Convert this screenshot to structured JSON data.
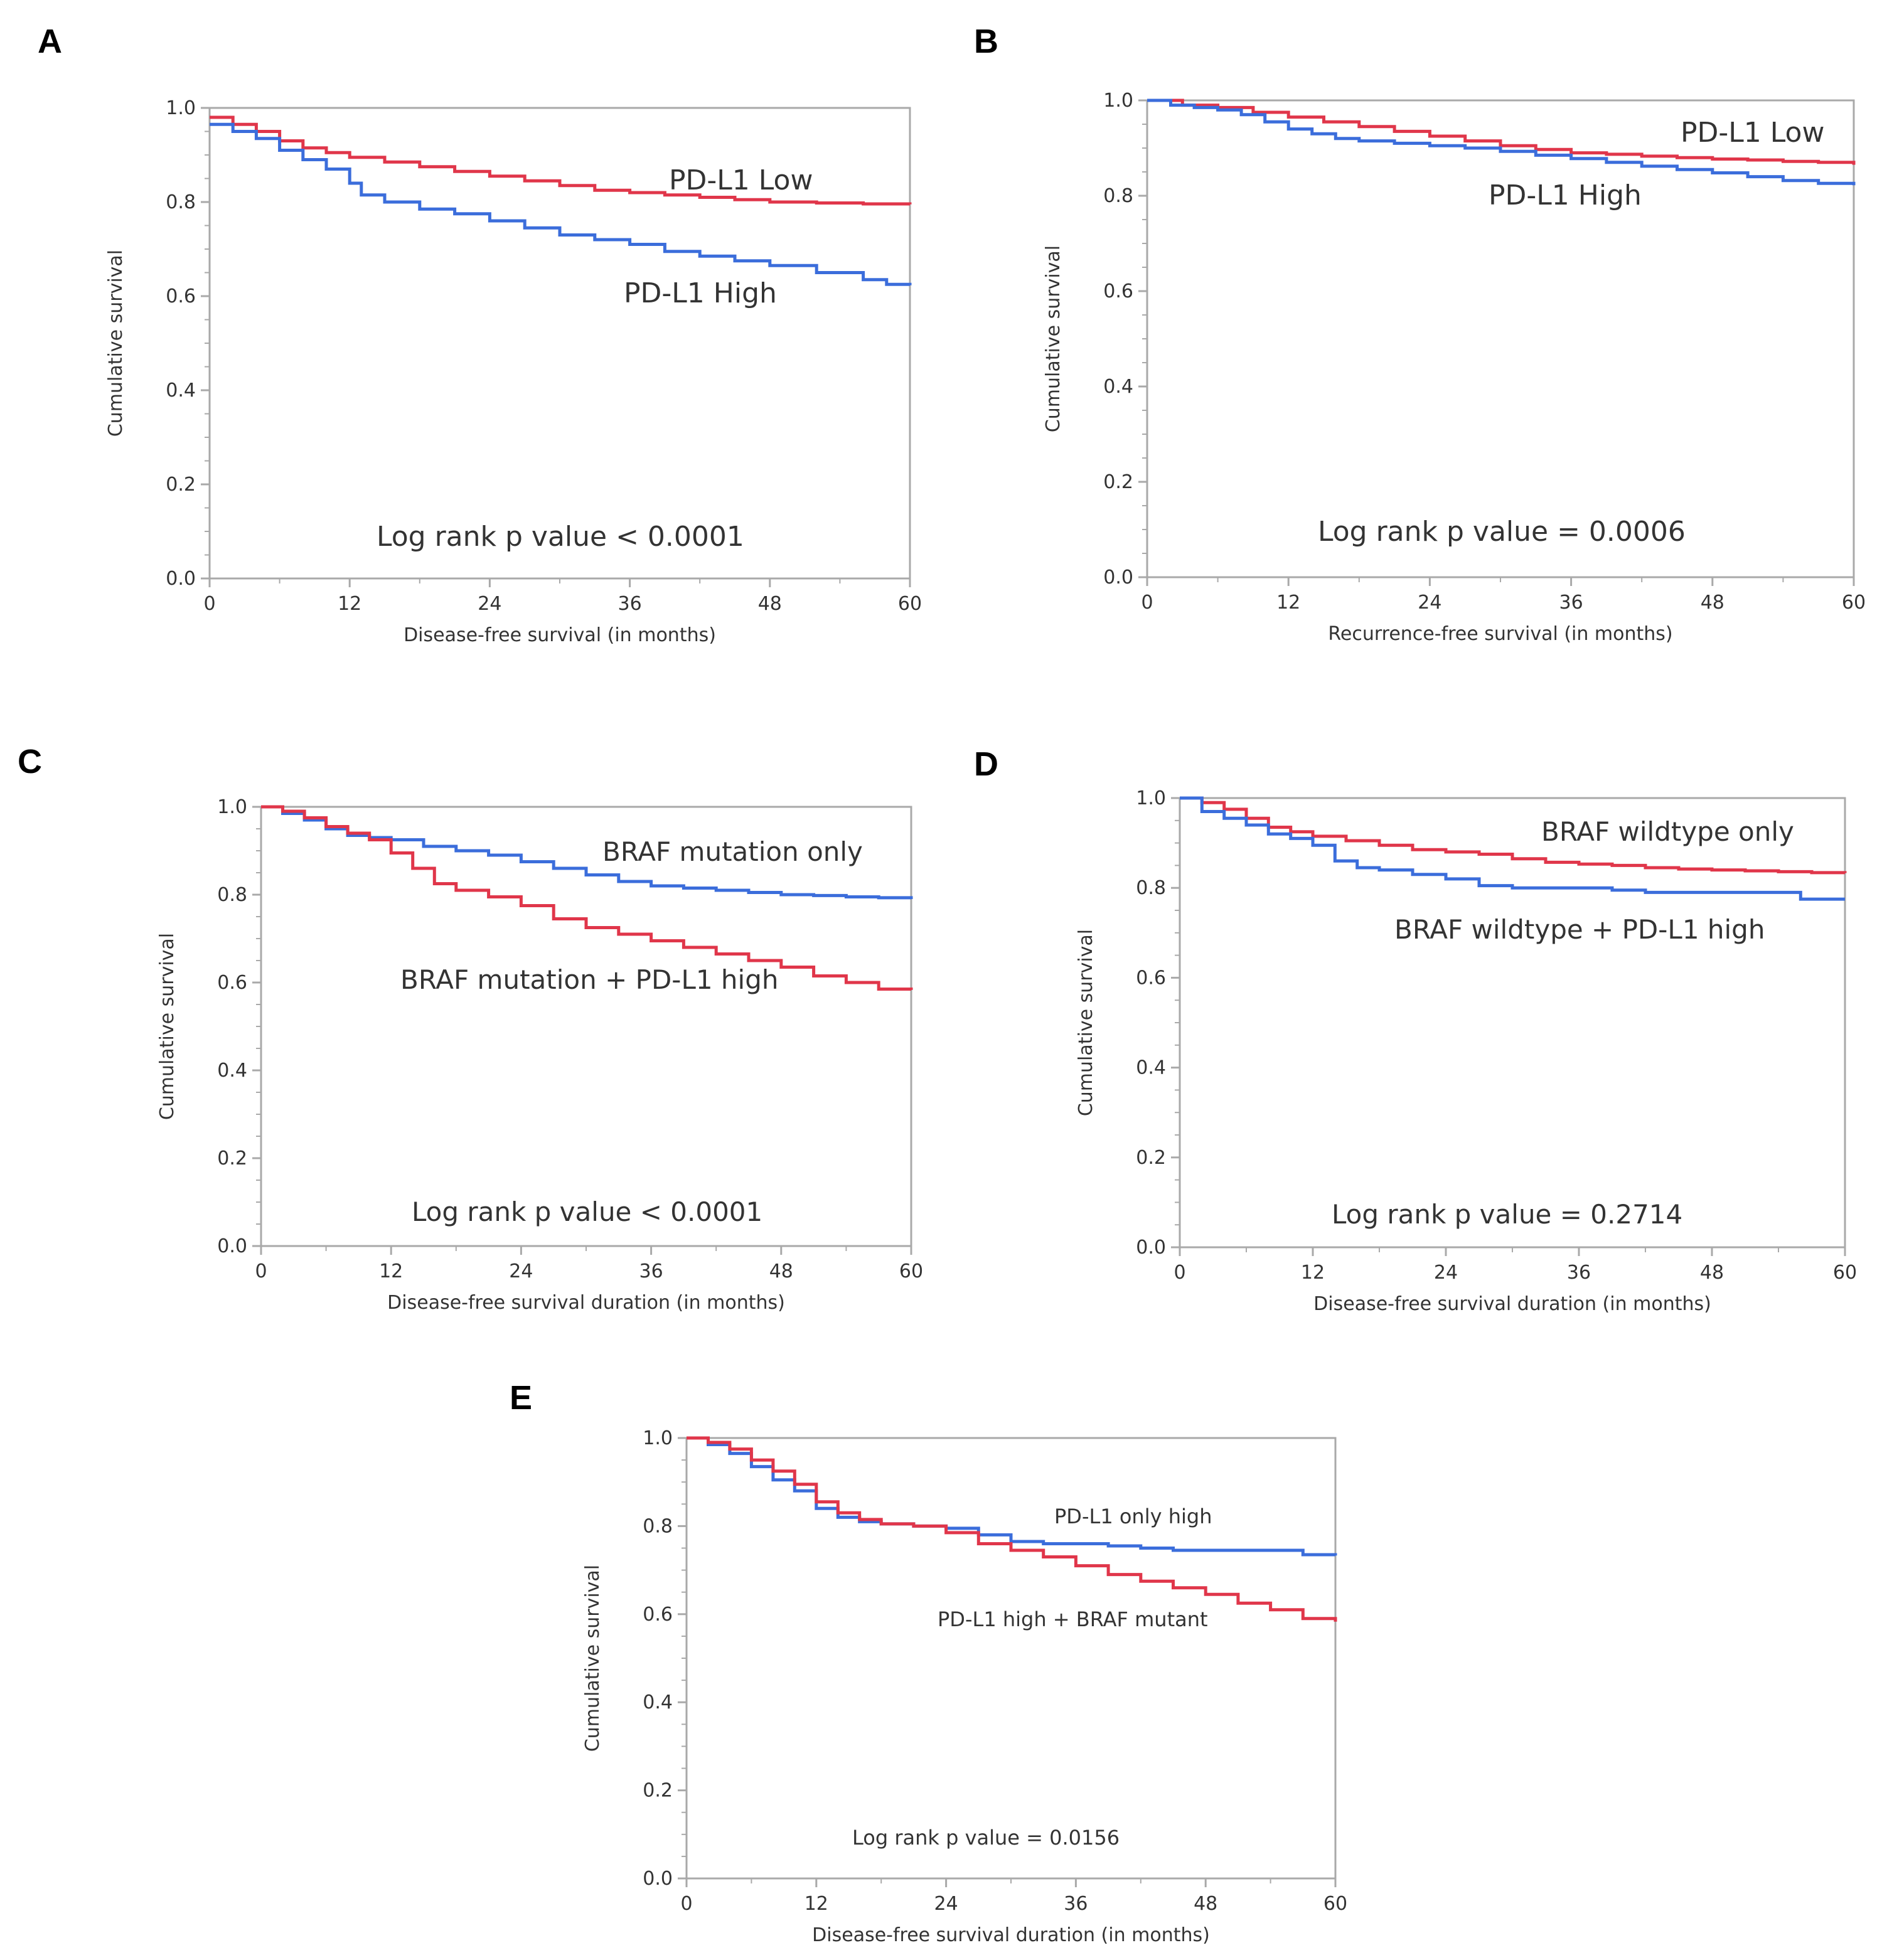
{
  "colors": {
    "red": "#e0364a",
    "blue": "#3b6ddb"
  },
  "chart_data": [
    {
      "panel": "A",
      "type": "line",
      "step": true,
      "xlabel": "Disease-free survival (in months)",
      "ylabel": "Cumulative survival",
      "xlim": [
        0,
        60
      ],
      "ylim": [
        0,
        1
      ],
      "xticks": [
        "0",
        "12",
        "24",
        "36",
        "48",
        "60"
      ],
      "yticks": [
        "0.0",
        "0.2",
        "0.4",
        "0.6",
        "0.8",
        "1.0"
      ],
      "series": [
        {
          "name": "PD-L1 Low",
          "color": "red",
          "x": [
            0,
            2,
            4,
            6,
            8,
            10,
            12,
            15,
            18,
            21,
            24,
            27,
            30,
            33,
            36,
            39,
            42,
            45,
            48,
            52,
            56,
            60
          ],
          "y": [
            0.98,
            0.965,
            0.95,
            0.93,
            0.915,
            0.905,
            0.895,
            0.885,
            0.875,
            0.865,
            0.855,
            0.845,
            0.835,
            0.825,
            0.82,
            0.815,
            0.81,
            0.805,
            0.8,
            0.798,
            0.796,
            0.795
          ]
        },
        {
          "name": "PD-L1 High",
          "color": "blue",
          "x": [
            0,
            2,
            4,
            6,
            8,
            10,
            12,
            13,
            15,
            18,
            21,
            24,
            27,
            30,
            33,
            36,
            39,
            42,
            45,
            48,
            52,
            56,
            58,
            60
          ],
          "y": [
            0.965,
            0.95,
            0.935,
            0.91,
            0.89,
            0.87,
            0.84,
            0.815,
            0.8,
            0.785,
            0.775,
            0.76,
            0.745,
            0.73,
            0.72,
            0.71,
            0.695,
            0.685,
            0.675,
            0.665,
            0.65,
            0.635,
            0.625,
            0.623
          ]
        }
      ],
      "annotations": [
        "PD-L1 Low",
        "PD-L1 High",
        "Log rank p value < 0.0001"
      ]
    },
    {
      "panel": "B",
      "type": "line",
      "step": true,
      "xlabel": "Recurrence-free survival (in months)",
      "ylabel": "Cumulative survival",
      "xlim": [
        0,
        60
      ],
      "ylim": [
        0,
        1
      ],
      "xticks": [
        "0",
        "12",
        "24",
        "36",
        "48",
        "60"
      ],
      "yticks": [
        "0.0",
        "0.2",
        "0.4",
        "0.6",
        "0.8",
        "1.0"
      ],
      "series": [
        {
          "name": "PD-L1 Low",
          "color": "red",
          "x": [
            0,
            3,
            6,
            9,
            12,
            15,
            18,
            21,
            24,
            27,
            30,
            33,
            36,
            39,
            42,
            45,
            48,
            51,
            54,
            57,
            60
          ],
          "y": [
            1.0,
            0.99,
            0.985,
            0.975,
            0.965,
            0.955,
            0.945,
            0.935,
            0.925,
            0.915,
            0.905,
            0.897,
            0.89,
            0.887,
            0.883,
            0.88,
            0.877,
            0.875,
            0.872,
            0.87,
            0.865
          ]
        },
        {
          "name": "PD-L1 High",
          "color": "blue",
          "x": [
            0,
            2,
            4,
            6,
            8,
            10,
            12,
            14,
            16,
            18,
            21,
            24,
            27,
            30,
            33,
            36,
            39,
            42,
            45,
            48,
            51,
            54,
            57,
            60
          ],
          "y": [
            1.0,
            0.99,
            0.985,
            0.98,
            0.97,
            0.955,
            0.94,
            0.93,
            0.92,
            0.915,
            0.91,
            0.905,
            0.9,
            0.893,
            0.885,
            0.878,
            0.87,
            0.862,
            0.855,
            0.848,
            0.84,
            0.832,
            0.826,
            0.822
          ]
        }
      ],
      "annotations": [
        "PD-L1 Low",
        "PD-L1 High",
        "Log rank p value = 0.0006"
      ]
    },
    {
      "panel": "C",
      "type": "line",
      "step": true,
      "xlabel": "Disease-free survival duration (in months)",
      "ylabel": "Cumulative survival",
      "xlim": [
        0,
        60
      ],
      "ylim": [
        0,
        1
      ],
      "xticks": [
        "0",
        "12",
        "24",
        "36",
        "48",
        "60"
      ],
      "yticks": [
        "0.0",
        "0.2",
        "0.4",
        "0.6",
        "0.8",
        "1.0"
      ],
      "series": [
        {
          "name": "BRAF mutation only",
          "color": "blue",
          "x": [
            0,
            2,
            4,
            6,
            8,
            10,
            12,
            15,
            18,
            21,
            24,
            27,
            30,
            33,
            36,
            39,
            42,
            45,
            48,
            51,
            54,
            57,
            60
          ],
          "y": [
            1.0,
            0.985,
            0.97,
            0.95,
            0.935,
            0.93,
            0.925,
            0.91,
            0.9,
            0.89,
            0.875,
            0.86,
            0.845,
            0.83,
            0.82,
            0.815,
            0.81,
            0.805,
            0.8,
            0.798,
            0.795,
            0.793,
            0.79
          ]
        },
        {
          "name": "BRAF mutation + PD-L1 high",
          "color": "red",
          "x": [
            0,
            2,
            4,
            6,
            8,
            10,
            12,
            14,
            16,
            18,
            21,
            24,
            27,
            30,
            33,
            36,
            39,
            42,
            45,
            48,
            51,
            54,
            57,
            60
          ],
          "y": [
            1.0,
            0.99,
            0.975,
            0.955,
            0.94,
            0.925,
            0.895,
            0.86,
            0.825,
            0.81,
            0.795,
            0.775,
            0.745,
            0.725,
            0.71,
            0.695,
            0.68,
            0.665,
            0.65,
            0.635,
            0.615,
            0.6,
            0.585,
            0.583
          ]
        }
      ],
      "annotations": [
        "BRAF mutation only",
        "BRAF mutation + PD-L1 high",
        "Log rank p value < 0.0001"
      ]
    },
    {
      "panel": "D",
      "type": "line",
      "step": true,
      "xlabel": "Disease-free survival duration (in months)",
      "ylabel": "Cumulative survival",
      "xlim": [
        0,
        60
      ],
      "ylim": [
        0,
        1
      ],
      "xticks": [
        "0",
        "12",
        "24",
        "36",
        "48",
        "60"
      ],
      "yticks": [
        "0.0",
        "0.2",
        "0.4",
        "0.6",
        "0.8",
        "1.0"
      ],
      "series": [
        {
          "name": "BRAF wildtype only",
          "color": "red",
          "x": [
            0,
            2,
            4,
            6,
            8,
            10,
            12,
            15,
            18,
            21,
            24,
            27,
            30,
            33,
            36,
            39,
            42,
            45,
            48,
            51,
            54,
            57,
            60
          ],
          "y": [
            1.0,
            0.99,
            0.975,
            0.955,
            0.935,
            0.925,
            0.915,
            0.905,
            0.895,
            0.885,
            0.88,
            0.875,
            0.865,
            0.857,
            0.853,
            0.85,
            0.845,
            0.842,
            0.84,
            0.838,
            0.836,
            0.834,
            0.833
          ]
        },
        {
          "name": "BRAF wildtype + PD-L1 high",
          "color": "blue",
          "x": [
            0,
            2,
            4,
            6,
            8,
            10,
            12,
            14,
            16,
            18,
            21,
            24,
            27,
            30,
            33,
            36,
            39,
            42,
            45,
            48,
            51,
            54,
            56,
            60
          ],
          "y": [
            1.0,
            0.97,
            0.955,
            0.94,
            0.92,
            0.91,
            0.895,
            0.86,
            0.845,
            0.84,
            0.83,
            0.82,
            0.805,
            0.8,
            0.8,
            0.8,
            0.795,
            0.79,
            0.79,
            0.79,
            0.79,
            0.79,
            0.775,
            0.775
          ]
        }
      ],
      "annotations": [
        "BRAF wildtype only",
        "BRAF wildtype + PD-L1 high",
        "Log rank p value = 0.2714"
      ]
    },
    {
      "panel": "E",
      "type": "line",
      "step": true,
      "xlabel": "Disease-free survival duration (in months)",
      "ylabel": "Cumulative survival",
      "xlim": [
        0,
        60
      ],
      "ylim": [
        0,
        1
      ],
      "xticks": [
        "0",
        "12",
        "24",
        "36",
        "48",
        "60"
      ],
      "yticks": [
        "0.0",
        "0.2",
        "0.4",
        "0.6",
        "0.8",
        "1.0"
      ],
      "series": [
        {
          "name": "PD-L1 only high",
          "color": "blue",
          "x": [
            0,
            2,
            4,
            6,
            8,
            10,
            12,
            14,
            16,
            18,
            21,
            24,
            27,
            30,
            33,
            36,
            39,
            42,
            45,
            48,
            51,
            54,
            57,
            60
          ],
          "y": [
            1.0,
            0.985,
            0.965,
            0.935,
            0.905,
            0.88,
            0.84,
            0.82,
            0.81,
            0.805,
            0.8,
            0.795,
            0.78,
            0.765,
            0.76,
            0.76,
            0.755,
            0.75,
            0.745,
            0.745,
            0.745,
            0.745,
            0.735,
            0.733
          ]
        },
        {
          "name": "PD-L1 high + BRAF mutant",
          "color": "red",
          "x": [
            0,
            2,
            4,
            6,
            8,
            10,
            12,
            14,
            16,
            18,
            21,
            24,
            27,
            30,
            33,
            36,
            39,
            42,
            45,
            48,
            51,
            54,
            57,
            60
          ],
          "y": [
            1.0,
            0.99,
            0.975,
            0.95,
            0.925,
            0.895,
            0.855,
            0.83,
            0.815,
            0.805,
            0.8,
            0.785,
            0.76,
            0.745,
            0.73,
            0.71,
            0.69,
            0.675,
            0.66,
            0.645,
            0.625,
            0.61,
            0.59,
            0.583
          ]
        }
      ],
      "annotations": [
        "PD-L1 only high",
        "PD-L1 high + BRAF mutant",
        "Log rank p value = 0.0156"
      ]
    }
  ]
}
